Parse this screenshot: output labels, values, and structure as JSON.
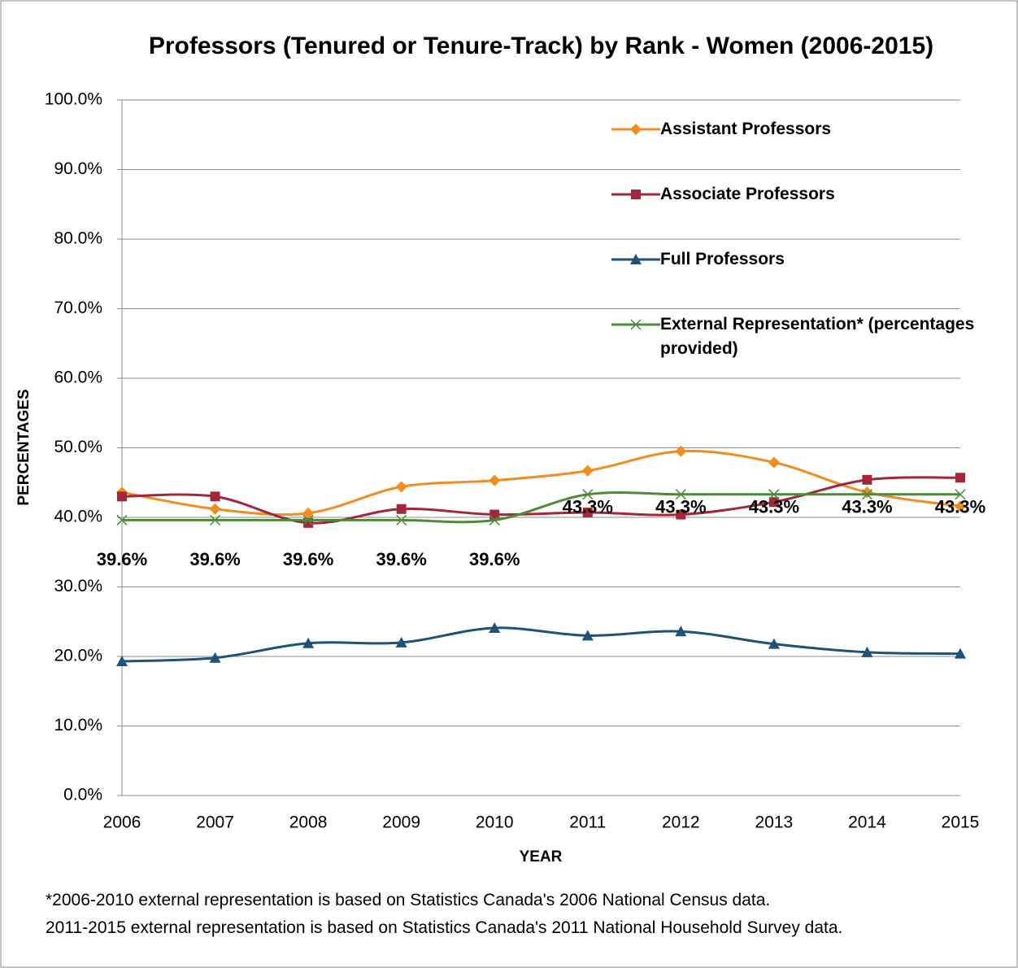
{
  "chart_data": {
    "type": "line",
    "title": "Professors (Tenured or Tenure-Track) by Rank  - Women (2006-2015)",
    "x_label": "YEAR",
    "y_label": "PERCENTAGES",
    "categories": [
      "2006",
      "2007",
      "2008",
      "2009",
      "2010",
      "2011",
      "2012",
      "2013",
      "2014",
      "2015"
    ],
    "ylim": [
      0,
      100
    ],
    "yticks": [
      {
        "value": 0,
        "label": "0.0%"
      },
      {
        "value": 10,
        "label": "10.0%"
      },
      {
        "value": 20,
        "label": "20.0%"
      },
      {
        "value": 30,
        "label": "30.0%"
      },
      {
        "value": 40,
        "label": "40.0%"
      },
      {
        "value": 50,
        "label": "50.0%"
      },
      {
        "value": 60,
        "label": "60.0%"
      },
      {
        "value": 70,
        "label": "70.0%"
      },
      {
        "value": 80,
        "label": "80.0%"
      },
      {
        "value": 90,
        "label": "90.0%"
      },
      {
        "value": 100,
        "label": "100.0%"
      }
    ],
    "grid": true,
    "smooth": true,
    "legend": "upper right",
    "series": [
      {
        "name": "Assistant Professors",
        "color": "#f28c1c",
        "marker": "diamond",
        "values": [
          43.6,
          41.2,
          40.6,
          44.4,
          45.3,
          46.7,
          49.5,
          47.9,
          43.6,
          41.6
        ]
      },
      {
        "name": "Associate Professors",
        "color": "#a3273a",
        "marker": "square",
        "values": [
          43.0,
          43.0,
          39.2,
          41.2,
          40.4,
          40.7,
          40.4,
          42.2,
          45.4,
          45.7
        ]
      },
      {
        "name": "Full Professors",
        "color": "#1f5278",
        "marker": "triangle",
        "values": [
          19.3,
          19.8,
          21.9,
          22.0,
          24.1,
          23.0,
          23.6,
          21.8,
          20.6,
          20.4
        ]
      },
      {
        "name": "External Representation* (percentages provided)",
        "color": "#4e8a3a",
        "marker": "x",
        "values": [
          39.6,
          39.6,
          39.6,
          39.6,
          39.6,
          43.3,
          43.3,
          43.3,
          43.3,
          43.3
        ],
        "value_labels": [
          "39.6%",
          "39.6%",
          "39.6%",
          "39.6%",
          "39.6%",
          "43.3%",
          "43.3%",
          "43.3%",
          "43.3%",
          "43.3%"
        ]
      }
    ],
    "notes": [
      "*2006-2010 external representation is based on Statistics Canada's 2006 National Census data.",
      "2011-2015 external representation is based on Statistics Canada's 2011 National Household Survey data."
    ]
  }
}
